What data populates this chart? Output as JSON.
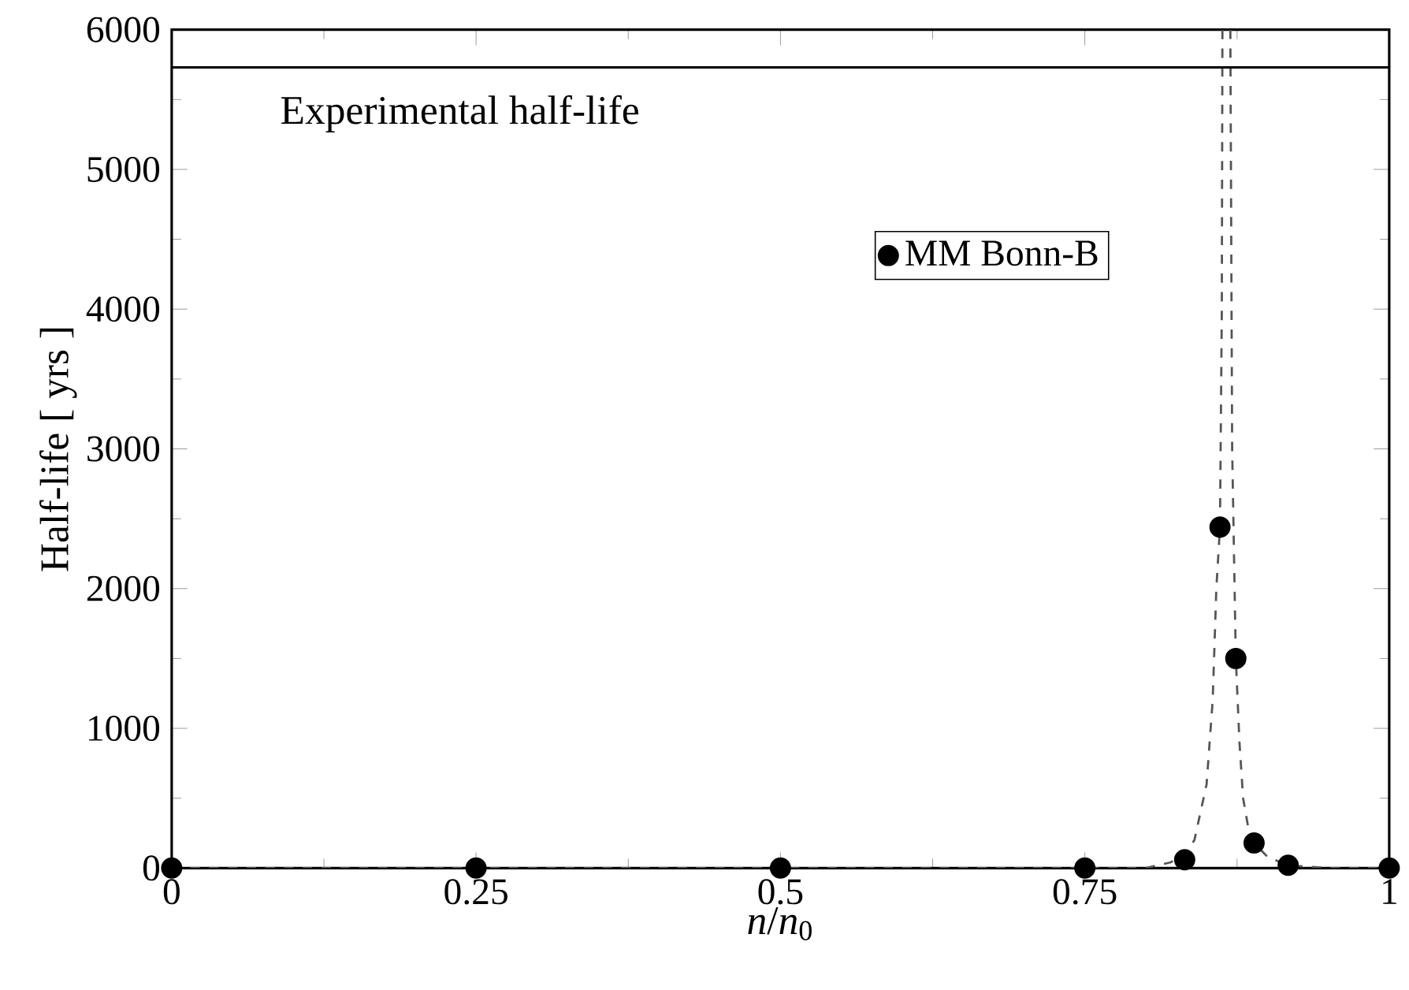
{
  "chart_data": {
    "type": "scatter",
    "xlabel": "*n*/*n*$_{0}$",
    "ylabel": "Half-life [ yrs ]",
    "xlim": [
      0,
      1
    ],
    "xticks": [
      0,
      0.25,
      0.5,
      0.75,
      1
    ],
    "ylim": [
      0,
      6000
    ],
    "yticks": [
      0,
      1000,
      2000,
      3000,
      4000,
      5000,
      6000
    ],
    "grid": false,
    "legend": "top right",
    "series": [
      {
        "name": "MM Bonn-B",
        "color": "#000000",
        "marker": "circle",
        "x": [
          0,
          0.25,
          0.5,
          0.75,
          0.832,
          0.861,
          0.874,
          0.889,
          0.917,
          1
        ],
        "values": [
          0,
          0,
          0,
          0,
          60,
          2440,
          1500,
          180,
          20,
          0
        ]
      },
      {
        "type": "line",
        "marker": "none",
        "line_style": "dashed",
        "color": "#555555",
        "x": [
          0,
          0.5,
          0.75,
          0.8,
          0.82,
          0.83,
          0.84,
          0.85,
          0.855,
          0.858,
          0.861,
          0.8625,
          0.863,
          0.866,
          0.8695,
          0.871,
          0.874,
          0.877,
          0.88,
          0.885,
          0.889,
          0.9,
          0.917,
          0.95,
          1
        ],
        "values": [
          0,
          0,
          0,
          0,
          40,
          80,
          200,
          600,
          1200,
          2000,
          2440,
          4000,
          6000,
          null,
          6000,
          3000,
          1500,
          900,
          500,
          250,
          180,
          80,
          20,
          0,
          0
        ]
      }
    ],
    "ref_lines": [
      {
        "axis": "y",
        "value": 5730,
        "label": "Experimental half-life",
        "color": "#000000",
        "line_style": "solid"
      }
    ]
  }
}
